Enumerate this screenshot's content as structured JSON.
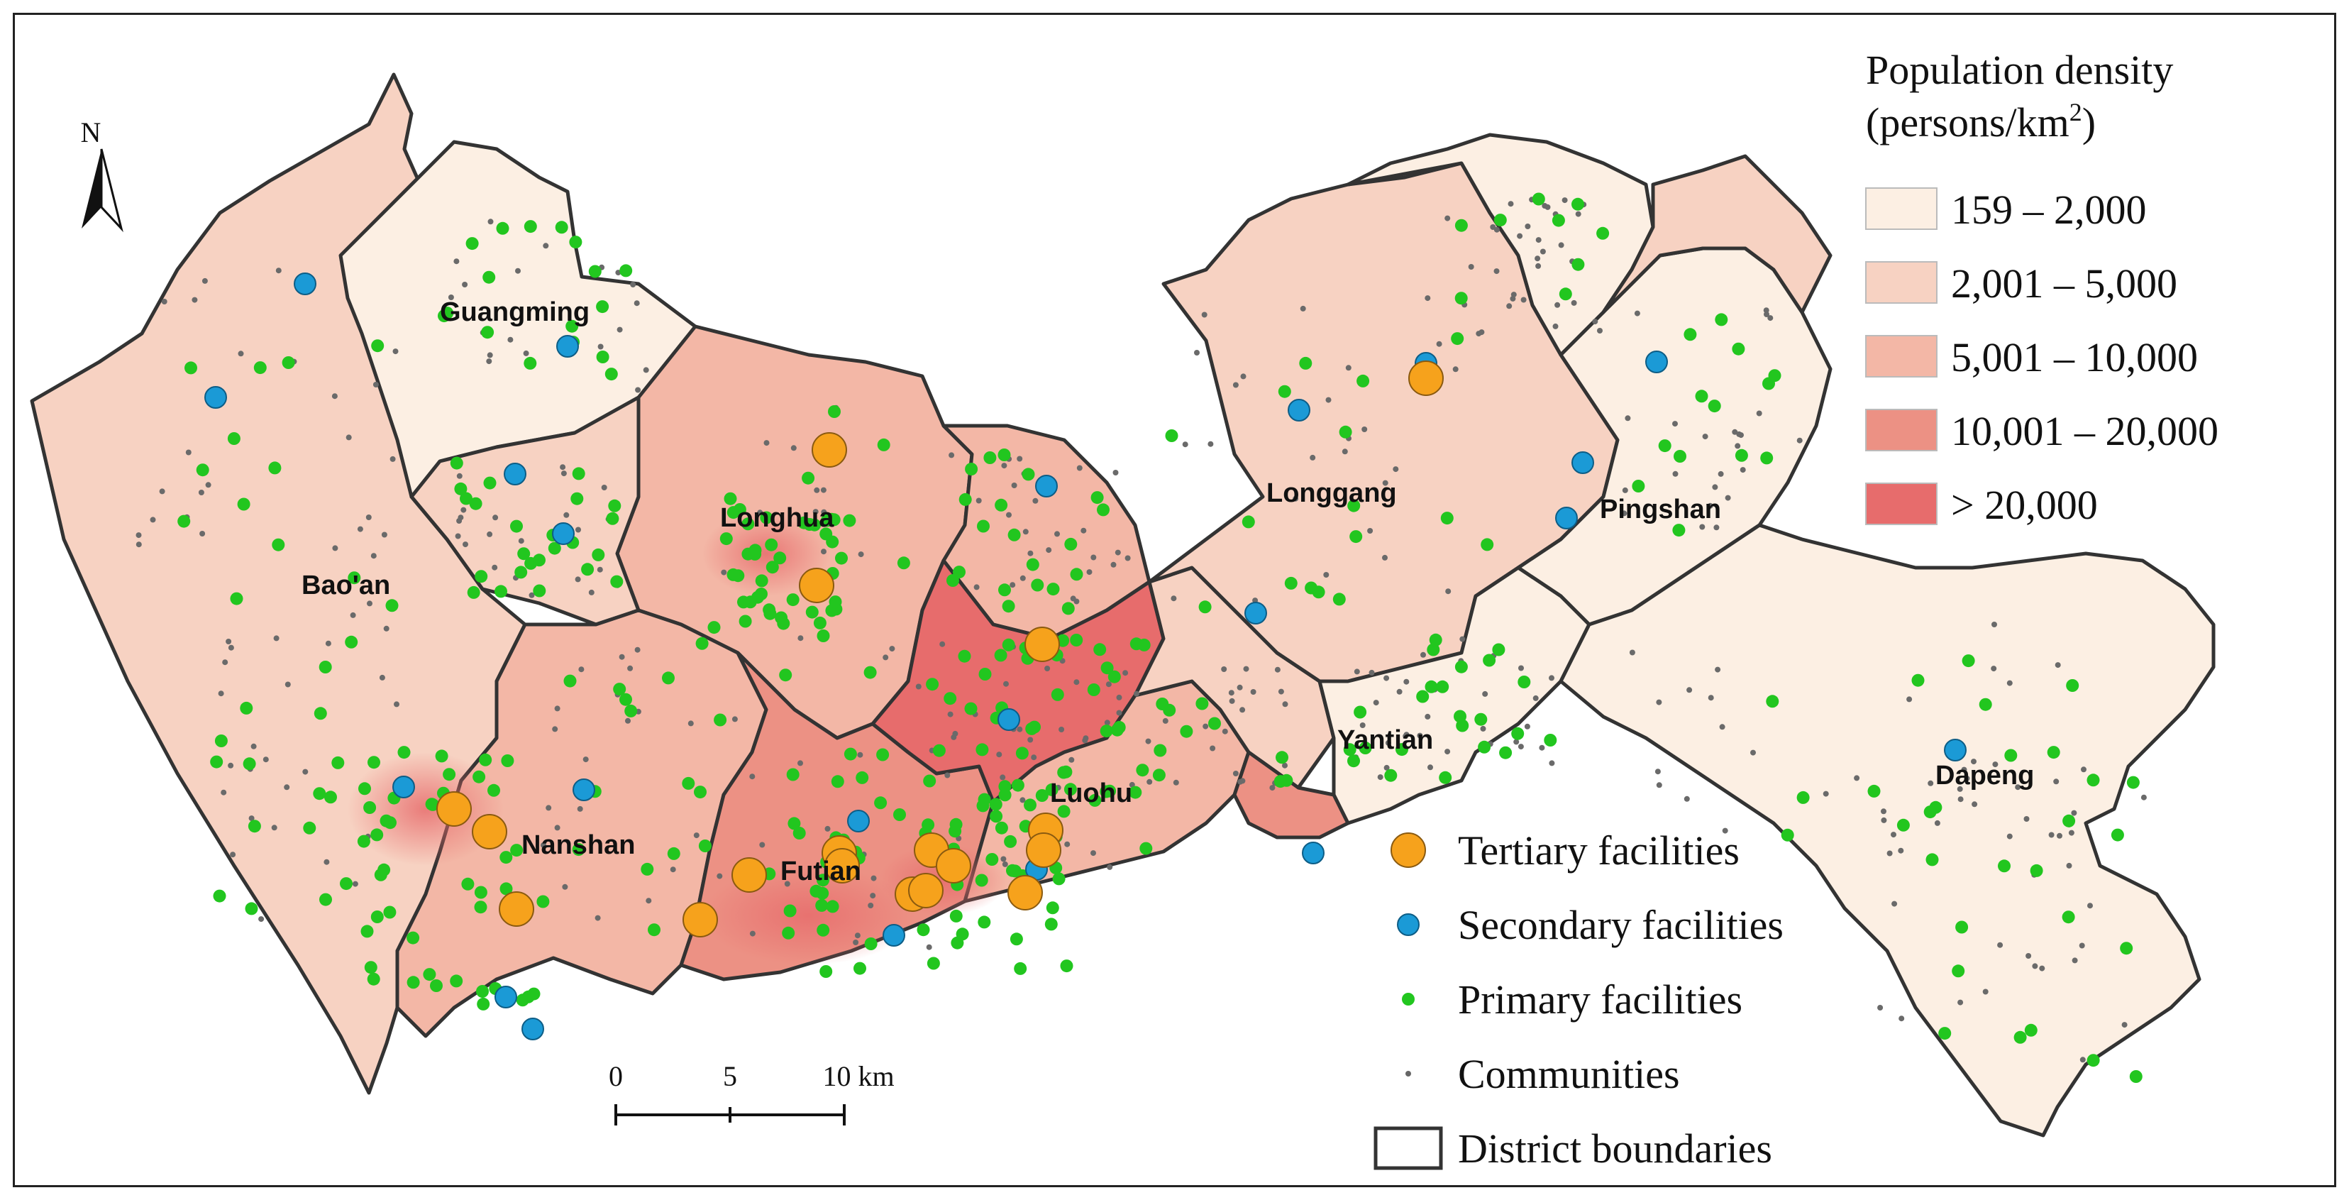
{
  "legend": {
    "title_line1": "Population density",
    "title_line2_prefix": "(persons/km",
    "title_line2_sup": "2",
    "title_line2_suffix": ")",
    "density_classes": [
      {
        "label": "159 – 2,000",
        "color": "#fcefe3"
      },
      {
        "label": "2,001 – 5,000",
        "color": "#f7d2c2"
      },
      {
        "label": "5,001 – 10,000",
        "color": "#f3b7a6"
      },
      {
        "label": "10,001 – 20,000",
        "color": "#ec9184"
      },
      {
        "label": "> 20,000",
        "color": "#e76c6c"
      }
    ],
    "symbols": [
      {
        "label": "Tertiary facilities",
        "kind": "tertiary",
        "color": "#f6a21c"
      },
      {
        "label": "Secondary facilities",
        "kind": "secondary",
        "color": "#1b9ad6"
      },
      {
        "label": "Primary facilities",
        "kind": "primary",
        "color": "#22c61f"
      },
      {
        "label": "Communities",
        "kind": "community",
        "color": "#666666"
      },
      {
        "label": "District boundaries",
        "kind": "boundary",
        "color": "#333333"
      }
    ]
  },
  "districts": [
    {
      "name": "Guangming",
      "density": 1
    },
    {
      "name": "Bao'an",
      "density": 3
    },
    {
      "name": "Longhua",
      "density": 3
    },
    {
      "name": "Longgang",
      "density": 1
    },
    {
      "name": "Pingshan",
      "density": 0
    },
    {
      "name": "Nanshan",
      "density": 2
    },
    {
      "name": "Futian",
      "density": 3
    },
    {
      "name": "Luohu",
      "density": 2
    },
    {
      "name": "Yantian",
      "density": 0
    },
    {
      "name": "Dapeng",
      "density": 0
    }
  ],
  "scale_bar": {
    "ticks": [
      "0",
      "5",
      "10 km"
    ]
  },
  "north_arrow": {
    "label": "N",
    "icon": "north-arrow-icon"
  }
}
